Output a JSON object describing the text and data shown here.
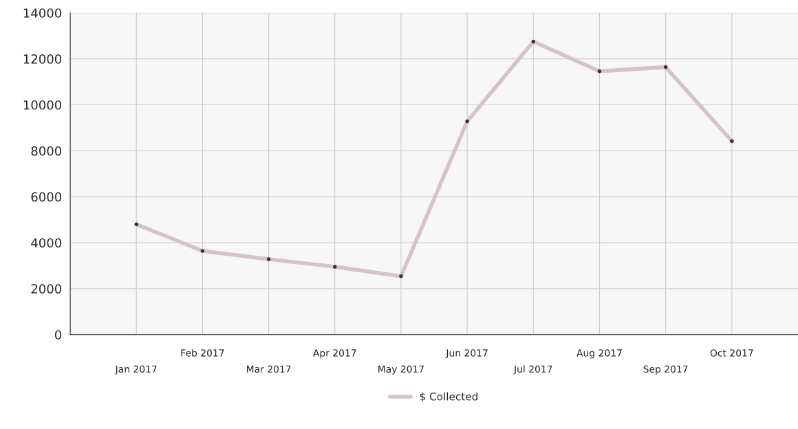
{
  "chart_data": {
    "type": "line",
    "categories": [
      "Jan 2017",
      "Feb 2017",
      "Mar 2017",
      "Apr 2017",
      "May 2017",
      "Jun 2017",
      "Jul 2017",
      "Aug 2017",
      "Sep 2017",
      "Oct 2017"
    ],
    "series": [
      {
        "name": "$ Collected",
        "color": "#d4c4c6",
        "values": [
          4800,
          3640,
          3280,
          2950,
          2540,
          9280,
          12750,
          11460,
          11640,
          8420
        ]
      }
    ],
    "ylim": [
      0,
      14000
    ],
    "yticks": [
      0,
      2000,
      4000,
      6000,
      8000,
      10000,
      12000,
      14000
    ],
    "grid": true,
    "legend": "bottom",
    "marker": "circle",
    "line_style": "solid"
  }
}
